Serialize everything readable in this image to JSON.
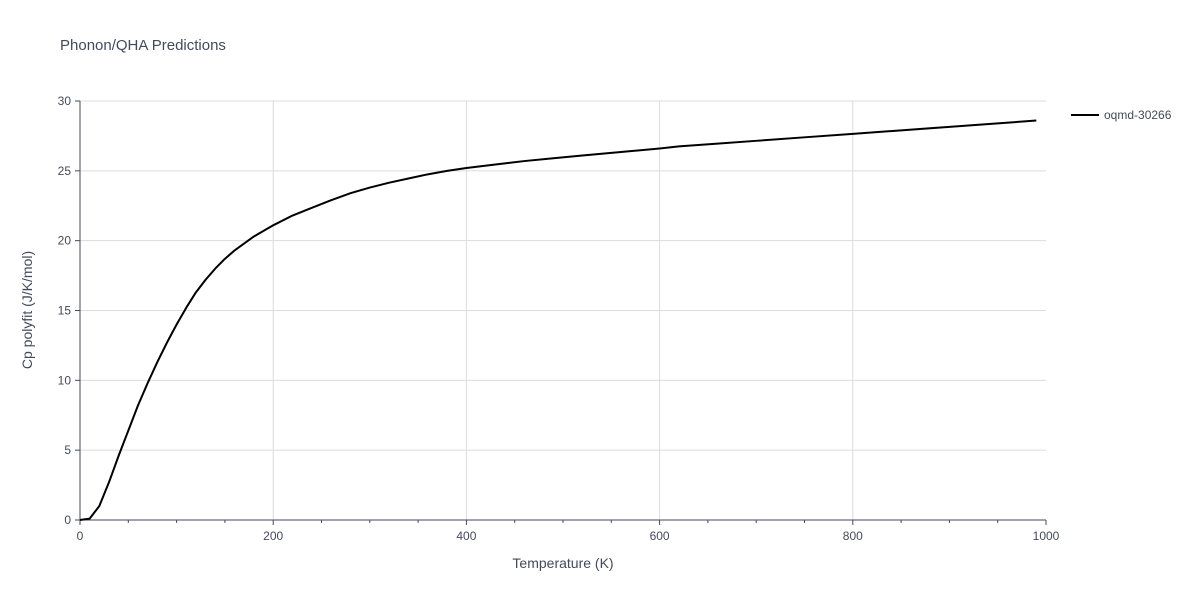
{
  "chart_data": {
    "type": "line",
    "title": "Phonon/QHA Predictions",
    "xlabel": "Temperature (K)",
    "ylabel": "Cp polyfit (J/K/mol)",
    "xlim": [
      0,
      1000
    ],
    "ylim": [
      0,
      30
    ],
    "x_ticks": [
      "0",
      "200",
      "400",
      "600",
      "800",
      "1000"
    ],
    "y_ticks": [
      "0",
      "5",
      "10",
      "15",
      "20",
      "25",
      "30"
    ],
    "grid": true,
    "legend_position": "top-right",
    "series": [
      {
        "name": "oqmd-30266",
        "color": "#000000",
        "x": [
          0,
          10,
          20,
          30,
          40,
          50,
          60,
          70,
          80,
          90,
          100,
          110,
          120,
          130,
          140,
          150,
          160,
          170,
          180,
          190,
          200,
          220,
          240,
          260,
          280,
          300,
          320,
          340,
          360,
          380,
          400,
          430,
          460,
          490,
          520,
          560,
          600,
          620,
          660,
          700,
          750,
          800,
          850,
          900,
          950,
          990
        ],
        "y": [
          0,
          0.1,
          1.0,
          2.7,
          4.6,
          6.4,
          8.2,
          9.8,
          11.3,
          12.7,
          14.0,
          15.2,
          16.3,
          17.2,
          18.0,
          18.7,
          19.3,
          19.8,
          20.3,
          20.7,
          21.1,
          21.8,
          22.35,
          22.9,
          23.4,
          23.8,
          24.15,
          24.45,
          24.75,
          25.0,
          25.2,
          25.45,
          25.7,
          25.9,
          26.1,
          26.35,
          26.6,
          26.75,
          26.95,
          27.15,
          27.4,
          27.65,
          27.9,
          28.15,
          28.4,
          28.6
        ]
      }
    ]
  }
}
